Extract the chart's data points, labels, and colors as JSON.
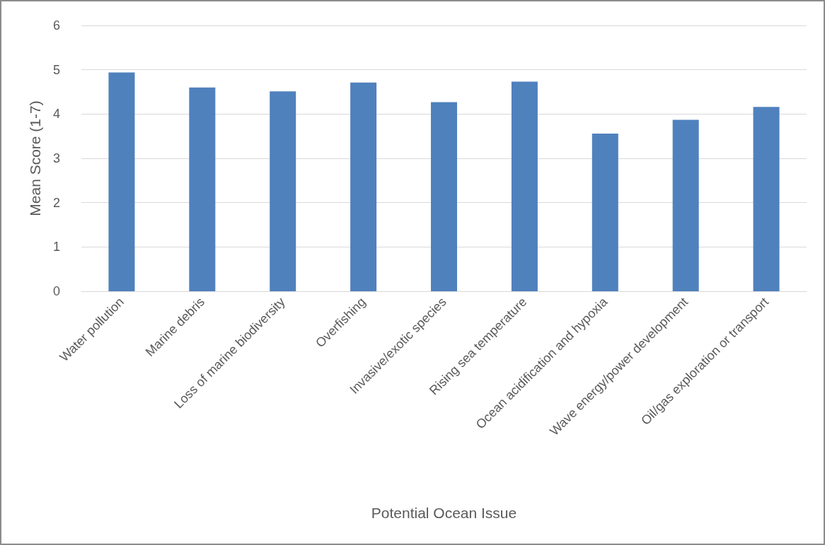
{
  "chart_data": {
    "type": "bar",
    "xlabel": "Potential Ocean Issue",
    "ylabel": "Mean Score (1-7)",
    "categories": [
      "Water pollution",
      "Marine debris",
      "Loss of marine biodiversity",
      "Overfishing",
      "Invasive/exotic species",
      "Rising sea temperature",
      "Ocean acidification and hypoxia",
      "Wave energy/power development",
      "Oil/gas exploration or transport"
    ],
    "values": [
      4.94,
      4.6,
      4.51,
      4.71,
      4.27,
      4.73,
      3.56,
      3.87,
      4.16
    ],
    "color": "#4f81bd",
    "ylim": [
      0,
      6
    ],
    "yticks": [
      0,
      1,
      2,
      3,
      4,
      5,
      6
    ],
    "grid": "y"
  }
}
